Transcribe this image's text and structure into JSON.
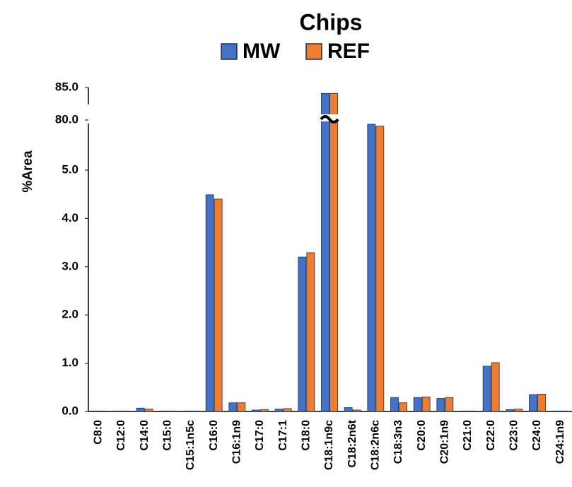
{
  "chart_data": {
    "type": "bar",
    "title": "Chips",
    "y_label": "%Area",
    "categories": [
      "C8:0",
      "C12:0",
      "C14:0",
      "C15:0",
      "C15:1n5c",
      "C16:0",
      "C16:1n9",
      "C17:0",
      "C17:1",
      "C18:0",
      "C18:1n9c",
      "C18:2n6t",
      "C18:2n6c",
      "C18:3n3",
      "C20:0",
      "C20:1n9",
      "C21:0",
      "C22:0",
      "C23:0",
      "C24:0",
      "C24:1n9"
    ],
    "series": [
      {
        "name": "MW",
        "color": "#4472c4",
        "values": [
          0.01,
          0.01,
          0.07,
          0.01,
          0.01,
          4.49,
          0.18,
          0.03,
          0.05,
          3.2,
          84.1,
          0.08,
          5.95,
          0.29,
          0.29,
          0.27,
          0.01,
          0.94,
          0.04,
          0.35,
          0.01
        ]
      },
      {
        "name": "REF",
        "color": "#ed7d31",
        "values": [
          0.01,
          0.01,
          0.05,
          0.01,
          0.01,
          4.4,
          0.18,
          0.04,
          0.06,
          3.29,
          84.1,
          0.03,
          5.91,
          0.18,
          0.3,
          0.29,
          0.01,
          1.01,
          0.05,
          0.36,
          0.01
        ]
      }
    ],
    "ylim": [
      0,
      85
    ],
    "yticks": [
      {
        "value": 0,
        "label": "0.0"
      },
      {
        "value": 1,
        "label": "1.0"
      },
      {
        "value": 2,
        "label": "2.0"
      },
      {
        "value": 3,
        "label": "3.0"
      },
      {
        "value": 4,
        "label": "4.0"
      },
      {
        "value": 5,
        "label": "5.0"
      },
      {
        "value": 80,
        "label": "80.0"
      },
      {
        "value": 85,
        "label": "85.0"
      }
    ],
    "axis_break": true
  }
}
